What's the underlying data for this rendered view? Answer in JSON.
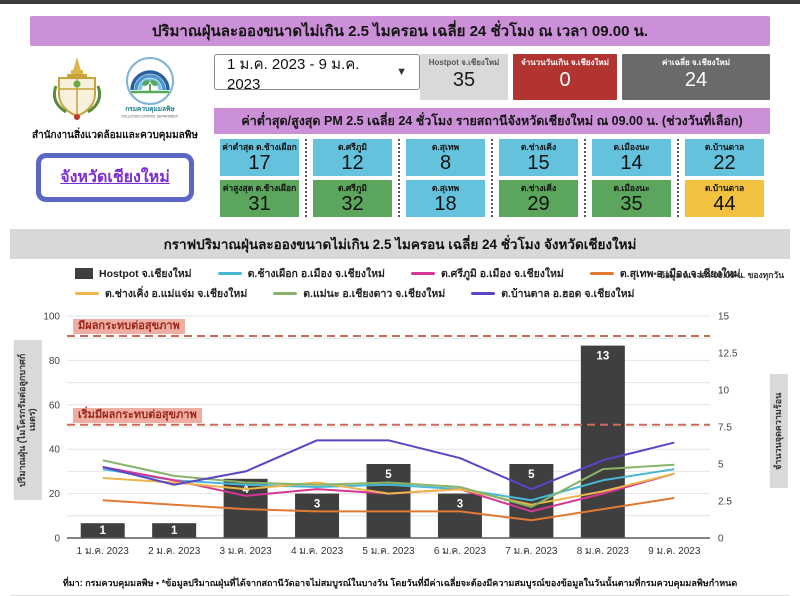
{
  "page": {
    "title": "ปริมาณฝุ่นละอองขนาดไม่เกิน 2.5 ไมครอน เฉลี่ย 24 ชั่วโมง ณ เวลา 09.00 น.",
    "source_note": "ที่มา: กรมควบคุมมลพิษ • *ข้อมูลปริมาณฝุ่นที่ได้จากสถานีวัดอาจไม่สมบูรณ์ในบางวัน โดยวันที่มีค่าเฉลี่ยจะต้องมีความสมบูรณ์ของข้อมูลในวันนั้นตามที่กรมควบคุมมลพิษกำหนด"
  },
  "org": {
    "office_name": "สำนักงานสิ่งแวดล้อมและควบคุมมลพิษ",
    "province_button_label": "จังหวัดเชียงใหม่",
    "pcd_logo_name_th": "กรมควบคุมมลพิษ",
    "pcd_logo_name_en": "POLLUTION CONTROL DEPARTMENT"
  },
  "controls": {
    "date_range_value": "1 ม.ค. 2023 - 9 ม.ค. 2023"
  },
  "stats": [
    {
      "label": "Hostpot จ.เชียงใหม่",
      "value": "35",
      "bg": "#D9D9D9",
      "fg": "#1a1a1a",
      "label_fg": "#555555"
    },
    {
      "label": "จำนวนวันเกิน จ.เชียงใหม่",
      "value": "0",
      "bg": "#B23431",
      "fg": "#ffffff",
      "label_fg": "#ffffff"
    },
    {
      "label": "ค่าเฉลี่ย จ.เชียงใหม่",
      "value": "24",
      "bg": "#6A6A6A",
      "fg": "#ffffff",
      "label_fg": "#ffffff"
    }
  ],
  "minmax": {
    "title": "ค่าต่ำสุด/สูงสุด PM 2.5 เฉลี่ย 24 ชั่วโมง รายสถานีจังหวัดเชียงใหม่ ณ 09.00 น. (ช่วงวันที่เลือก)",
    "level_colors": {
      "good": "#64C2DD",
      "moderate": "#5BA55C",
      "unhealthy_start": "#F2C140"
    },
    "columns": [
      {
        "min_label": "ค่าต่ำสุด ต.ช้างเผือก",
        "min_value": "17",
        "min_level": "good",
        "max_label": "ค่าสูงสุด ต.ช้างเผือก",
        "max_value": "31",
        "max_level": "moderate"
      },
      {
        "min_label": "ต.ศรีภูมิ",
        "min_value": "12",
        "min_level": "good",
        "max_label": "ต.ศรีภูมิ",
        "max_value": "32",
        "max_level": "moderate"
      },
      {
        "min_label": "ต.สุเทพ",
        "min_value": "8",
        "min_level": "good",
        "max_label": "ต.สุเทพ",
        "max_value": "18",
        "max_level": "good"
      },
      {
        "min_label": "ต.ช่างเคิ่ง",
        "min_value": "15",
        "min_level": "good",
        "max_label": "ต.ช่างเคิ่ง",
        "max_value": "29",
        "max_level": "moderate"
      },
      {
        "min_label": "ต.เมืองนะ",
        "min_value": "14",
        "min_level": "good",
        "max_label": "ต.เมืองนะ",
        "max_value": "35",
        "max_level": "moderate"
      },
      {
        "min_label": "ต.บ้านตาล",
        "min_value": "22",
        "min_level": "good",
        "max_label": "ต.บ้านตาล",
        "max_value": "44",
        "max_level": "unhealthy_start"
      }
    ]
  },
  "chart_data": {
    "type": "bar+line",
    "title": "กราฟปริมาณฝุ่นละอองขนาดไม่เกิน 2.5 ไมครอน เฉลี่ย 24 ชั่วโมง จังหวัดเชียงใหม่",
    "note": "* ข้อมูล ณ เวลา 09.00 น. ของทุกวัน",
    "categories": [
      "1 ม.ค. 2023",
      "2 ม.ค. 2023",
      "3 ม.ค. 2023",
      "4 ม.ค. 2023",
      "5 ม.ค. 2023",
      "6 ม.ค. 2023",
      "7 ม.ค. 2023",
      "8 ม.ค. 2023",
      "9 ม.ค. 2023"
    ],
    "bar_series": {
      "name": "Hostpot จ.เชียงใหม่",
      "color": "#3F3F3F",
      "axis": "right",
      "values": [
        1,
        1,
        4,
        3,
        5,
        3,
        5,
        13,
        0
      ]
    },
    "line_series": [
      {
        "name": "ต.ช้างเผือก อ.เมือง จ.เชียงใหม่",
        "color": "#49B6D6",
        "axis": "left",
        "values": [
          31,
          26,
          24,
          23,
          24,
          22,
          17,
          26,
          31
        ]
      },
      {
        "name": "ต.ศรีภูมิ อ.เมือง จ.เชียงใหม่",
        "color": "#D53795",
        "axis": "left",
        "values": [
          32,
          26,
          19,
          22,
          20,
          22,
          12,
          20,
          29
        ]
      },
      {
        "name": "ต.สุเทพ อ.เมือง จ.เชียงใหม่",
        "color": "#E07A33",
        "axis": "left",
        "values": [
          17,
          15,
          13,
          12,
          12,
          12,
          8,
          13,
          18
        ]
      },
      {
        "name": "ต.ช่างเคิ่ง อ.แม่แจ่ม จ.เชียงใหม่",
        "color": "#EDB54A",
        "axis": "left",
        "values": [
          27,
          25,
          22,
          25,
          20,
          22,
          15,
          21,
          29
        ]
      },
      {
        "name": "ต.แม่นะ อ.เชียงดาว จ.เชียงใหม่",
        "color": "#88B369",
        "axis": "left",
        "values": [
          35,
          28,
          25,
          24,
          25,
          23,
          14,
          31,
          33
        ]
      },
      {
        "name": "ต.บ้านตาล อ.ฮอด จ.เชียงใหม่",
        "color": "#5946C6",
        "axis": "left",
        "values": [
          32,
          24,
          30,
          44,
          44,
          36,
          22,
          35,
          43
        ]
      }
    ],
    "left_axis": {
      "label": "ปริมาณฝุ่น (ไมโครกรัมต่อลูกบาศก์เมตร)",
      "min": 0,
      "max": 100,
      "ticks": [
        0,
        20,
        40,
        60,
        80,
        100
      ]
    },
    "right_axis": {
      "label": "จำนวนจุดความร้อน",
      "min": 0,
      "max": 15,
      "ticks": [
        0,
        2.5,
        5,
        7.5,
        10,
        12.5,
        15
      ]
    },
    "thresholds": [
      {
        "value": 91,
        "label": "มีผลกระทบต่อสุขภาพ"
      },
      {
        "value": 51,
        "label": "เริ่มมีผลกระทบต่อสุขภาพ"
      }
    ],
    "threshold_color": "#CC6A58",
    "grid": true,
    "legend_position": "top"
  }
}
